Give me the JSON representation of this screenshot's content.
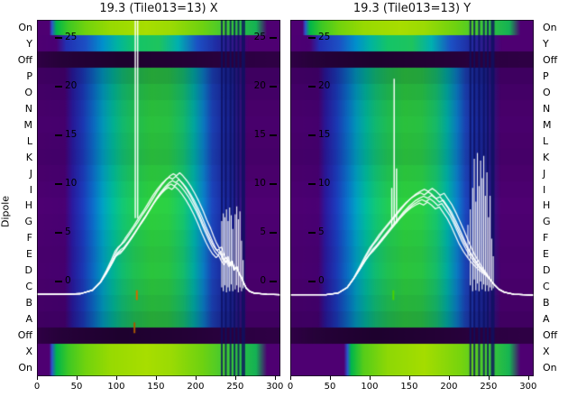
{
  "ylabel": "Dipole",
  "chart_data": {
    "type": "heatmap+line",
    "x_range": [
      0,
      307
    ],
    "y_value_range": [
      -6,
      27
    ],
    "x_ticks": [
      0,
      50,
      100,
      150,
      200,
      250,
      300
    ],
    "y_ticks": [
      25,
      20,
      15,
      10,
      5,
      0
    ],
    "rows": [
      {
        "label": "On",
        "type": "on",
        "dim": 0
      },
      {
        "label": "Y",
        "type": "y",
        "dim": 0
      },
      {
        "label": "Off",
        "type": "off",
        "dim": 0
      },
      {
        "label": "P",
        "type": "normal",
        "dim": 0.22
      },
      {
        "label": "O",
        "type": "normal",
        "dim": 0.15
      },
      {
        "label": "N",
        "type": "normal",
        "dim": 0.1
      },
      {
        "label": "M",
        "type": "normal",
        "dim": 0.08
      },
      {
        "label": "L",
        "type": "normal",
        "dim": 0.1
      },
      {
        "label": "K",
        "type": "normal",
        "dim": 0.12
      },
      {
        "label": "J",
        "type": "normal",
        "dim": 0.07
      },
      {
        "label": "I",
        "type": "normal",
        "dim": 0.03
      },
      {
        "label": "H",
        "type": "normal",
        "dim": 0
      },
      {
        "label": "G",
        "type": "normal",
        "dim": 0.02
      },
      {
        "label": "F",
        "type": "normal",
        "dim": 0.05
      },
      {
        "label": "E",
        "type": "normal",
        "dim": 0.08
      },
      {
        "label": "D",
        "type": "normal",
        "dim": 0.06
      },
      {
        "label": "C",
        "type": "normal",
        "dim": 0.1
      },
      {
        "label": "B",
        "type": "normal",
        "dim": 0.14
      },
      {
        "label": "A",
        "type": "normal",
        "dim": 0.2
      },
      {
        "label": "Off",
        "type": "off",
        "dim": 0
      },
      {
        "label": "X",
        "type": "on",
        "dim": 0
      },
      {
        "label": "On",
        "type": "on",
        "dim": 0
      }
    ],
    "gradients": {
      "on": [
        [
          0,
          "#4e0072"
        ],
        [
          0.05,
          "#4e0072"
        ],
        [
          0.062,
          "#2b57cc"
        ],
        [
          0.08,
          "#00b64b"
        ],
        [
          0.13,
          "#3fc824"
        ],
        [
          0.2,
          "#71d30e"
        ],
        [
          0.3,
          "#97da02"
        ],
        [
          0.45,
          "#a8de00"
        ],
        [
          0.55,
          "#9bdb04"
        ],
        [
          0.68,
          "#6ed211"
        ],
        [
          0.8,
          "#36c63c"
        ],
        [
          0.9,
          "#14b254"
        ],
        [
          0.945,
          "#4e0072"
        ],
        [
          1,
          "#4e0072"
        ]
      ],
      "on_late": [
        [
          0,
          "#4e0072"
        ],
        [
          0.22,
          "#4e0072"
        ],
        [
          0.235,
          "#2b57cc"
        ],
        [
          0.25,
          "#00b64b"
        ],
        [
          0.3,
          "#55cd1a"
        ],
        [
          0.4,
          "#8ed806"
        ],
        [
          0.55,
          "#a5dd00"
        ],
        [
          0.7,
          "#77d40e"
        ],
        [
          0.82,
          "#3cc837"
        ],
        [
          0.9,
          "#16b452"
        ],
        [
          0.945,
          "#4e0072"
        ],
        [
          1,
          "#4e0072"
        ]
      ],
      "off": [
        [
          0,
          "#2f0045"
        ],
        [
          0.1,
          "#260239"
        ],
        [
          0.35,
          "#1e012e"
        ],
        [
          0.6,
          "#240136"
        ],
        [
          0.85,
          "#2c0142"
        ],
        [
          1,
          "#2f0045"
        ]
      ],
      "y": [
        [
          0,
          "#4e0072"
        ],
        [
          0.08,
          "#4a0174"
        ],
        [
          0.12,
          "#2230b2"
        ],
        [
          0.2,
          "#1c50c4"
        ],
        [
          0.27,
          "#0090cc"
        ],
        [
          0.33,
          "#00b4a0"
        ],
        [
          0.4,
          "#14c468"
        ],
        [
          0.5,
          "#1ec45e"
        ],
        [
          0.58,
          "#00b0b0"
        ],
        [
          0.66,
          "#1c50c4"
        ],
        [
          0.74,
          "#202ba2"
        ],
        [
          0.82,
          "#351384"
        ],
        [
          0.87,
          "#4e0072"
        ],
        [
          1,
          "#4e0072"
        ]
      ],
      "normal": [
        [
          0,
          "#4e0072"
        ],
        [
          0.115,
          "#4a0174"
        ],
        [
          0.145,
          "#2b1aa0"
        ],
        [
          0.19,
          "#1c3dbe"
        ],
        [
          0.235,
          "#0b74cc"
        ],
        [
          0.27,
          "#00a2c4"
        ],
        [
          0.31,
          "#00bd9e"
        ],
        [
          0.35,
          "#12c876"
        ],
        [
          0.4,
          "#22cd55"
        ],
        [
          0.47,
          "#2ed23e"
        ],
        [
          0.54,
          "#2bd145"
        ],
        [
          0.6,
          "#17c96e"
        ],
        [
          0.645,
          "#00b4a8"
        ],
        [
          0.685,
          "#0b82cc"
        ],
        [
          0.72,
          "#1c46be"
        ],
        [
          0.76,
          "#1c2fa8"
        ],
        [
          0.8,
          "#1b2596"
        ],
        [
          0.835,
          "#371383"
        ],
        [
          0.865,
          "#4e0072"
        ],
        [
          1,
          "#4e0072"
        ]
      ]
    },
    "curve_offsets": [
      0,
      0.35,
      0.7,
      1.05,
      -0.35
    ],
    "curve_jitter": [
      0,
      2,
      -2,
      3,
      -3
    ],
    "panels": [
      {
        "axis": "X",
        "title": "19.3 (Tile013=13) X",
        "curve": [
          [
            0,
            -1.3
          ],
          [
            35,
            -1.3
          ],
          [
            55,
            -1.25
          ],
          [
            70,
            -0.9
          ],
          [
            80,
            -0.1
          ],
          [
            88,
            0.9
          ],
          [
            95,
            1.9
          ],
          [
            100,
            2.7
          ],
          [
            104,
            3.0
          ],
          [
            108,
            3.2
          ],
          [
            113,
            3.7
          ],
          [
            118,
            4.3
          ],
          [
            124,
            5.0
          ],
          [
            130,
            5.8
          ],
          [
            136,
            6.5
          ],
          [
            142,
            7.3
          ],
          [
            148,
            8.1
          ],
          [
            154,
            8.8
          ],
          [
            160,
            9.4
          ],
          [
            165,
            9.8
          ],
          [
            169,
            10.0
          ],
          [
            173,
            9.8
          ],
          [
            177,
            10.1
          ],
          [
            181,
            9.8
          ],
          [
            186,
            9.3
          ],
          [
            191,
            8.7
          ],
          [
            196,
            8.0
          ],
          [
            201,
            7.2
          ],
          [
            206,
            6.3
          ],
          [
            211,
            5.3
          ],
          [
            216,
            4.4
          ],
          [
            220,
            3.7
          ],
          [
            224,
            3.1
          ],
          [
            228,
            2.7
          ],
          [
            231,
            2.9
          ],
          [
            234,
            2.3
          ],
          [
            237,
            1.9
          ],
          [
            240,
            2.2
          ],
          [
            243,
            1.6
          ],
          [
            246,
            1.9
          ],
          [
            249,
            1.2
          ],
          [
            252,
            1.5
          ],
          [
            255,
            0.8
          ],
          [
            258,
            0.4
          ],
          [
            261,
            -0.2
          ],
          [
            264,
            -0.7
          ],
          [
            268,
            -1.0
          ],
          [
            274,
            -1.2
          ],
          [
            290,
            -1.3
          ],
          [
            307,
            -1.35
          ]
        ],
        "spikes": [
          [
            124,
            6.5,
            27.5
          ],
          [
            127,
            6.5,
            27.5
          ]
        ],
        "noise": [
          [
            233,
            -0.6,
            6.2
          ],
          [
            235,
            -1.0,
            7.0
          ],
          [
            237,
            -0.4,
            6.6
          ],
          [
            239,
            -1.1,
            7.4
          ],
          [
            241,
            -0.6,
            6.2
          ],
          [
            243,
            -1.0,
            7.6
          ],
          [
            245,
            -0.3,
            6.8
          ],
          [
            247,
            -1.0,
            5.4
          ],
          [
            250,
            -0.8,
            6.9
          ],
          [
            252,
            -0.4,
            7.7
          ],
          [
            254,
            -1.1,
            6.4
          ],
          [
            256,
            -0.6,
            7.2
          ],
          [
            258,
            -1.0,
            4.2
          ],
          [
            260,
            -0.7,
            2.2
          ]
        ],
        "stripes": [
          [
            232,
            2
          ],
          [
            237,
            2
          ],
          [
            243,
            2
          ],
          [
            248,
            2
          ],
          [
            253,
            2
          ],
          [
            258,
            4
          ]
        ],
        "markers": [
          {
            "x": 126,
            "v1": -0.9,
            "v2": -1.9,
            "color": "#d06a00"
          },
          {
            "x": 123,
            "v1": -4.2,
            "v2": -5.3,
            "color": "#a85800"
          }
        ],
        "row_overrides": {}
      },
      {
        "axis": "Y",
        "title": "19.3 (Tile013=13) Y",
        "curve": [
          [
            0,
            -1.35
          ],
          [
            45,
            -1.35
          ],
          [
            60,
            -1.2
          ],
          [
            72,
            -0.6
          ],
          [
            80,
            0.3
          ],
          [
            88,
            1.3
          ],
          [
            95,
            2.2
          ],
          [
            102,
            3.0
          ],
          [
            108,
            3.5
          ],
          [
            114,
            4.1
          ],
          [
            120,
            4.7
          ],
          [
            127,
            5.4
          ],
          [
            134,
            6.1
          ],
          [
            141,
            6.8
          ],
          [
            148,
            7.4
          ],
          [
            155,
            7.9
          ],
          [
            161,
            8.2
          ],
          [
            166,
            8.4
          ],
          [
            171,
            8.2
          ],
          [
            176,
            8.5
          ],
          [
            181,
            8.2
          ],
          [
            186,
            7.8
          ],
          [
            191,
            8.0
          ],
          [
            196,
            7.4
          ],
          [
            201,
            6.8
          ],
          [
            206,
            6.0
          ],
          [
            211,
            5.1
          ],
          [
            216,
            4.2
          ],
          [
            221,
            3.4
          ],
          [
            226,
            2.7
          ],
          [
            230,
            2.2
          ],
          [
            234,
            1.8
          ],
          [
            238,
            1.4
          ],
          [
            243,
            1.0
          ],
          [
            248,
            0.6
          ],
          [
            253,
            0.1
          ],
          [
            258,
            -0.4
          ],
          [
            263,
            -0.8
          ],
          [
            270,
            -1.1
          ],
          [
            282,
            -1.3
          ],
          [
            307,
            -1.4
          ]
        ],
        "spikes": [
          [
            128,
            5.6,
            9.6
          ],
          [
            131,
            5.8,
            20.8
          ],
          [
            134,
            6.0,
            11.6
          ]
        ],
        "noise": [
          [
            224,
            2.4,
            5.8
          ],
          [
            227,
            -0.4,
            7.4
          ],
          [
            230,
            -1.0,
            9.6
          ],
          [
            232,
            0.2,
            12.6
          ],
          [
            234,
            -0.9,
            8.2
          ],
          [
            236,
            -0.2,
            13.2
          ],
          [
            238,
            -1.0,
            9.8
          ],
          [
            240,
            0.0,
            12.4
          ],
          [
            242,
            -0.8,
            10.6
          ],
          [
            244,
            -0.3,
            12.9
          ],
          [
            246,
            -1.0,
            8.8
          ],
          [
            248,
            -0.4,
            11.2
          ],
          [
            250,
            -1.0,
            6.6
          ],
          [
            252,
            -0.6,
            8.8
          ],
          [
            254,
            -0.9,
            4.4
          ],
          [
            256,
            -0.7,
            2.6
          ]
        ],
        "stripes": [
          [
            226,
            2
          ],
          [
            231,
            2
          ],
          [
            237,
            2
          ],
          [
            243,
            2
          ],
          [
            248,
            2
          ],
          [
            253,
            4
          ]
        ],
        "markers": [
          {
            "x": 130,
            "v1": -0.9,
            "v2": -1.9,
            "color": "#4ad000"
          }
        ],
        "row_overrides": {
          "20": "on_late",
          "21": "on_late"
        }
      }
    ]
  }
}
